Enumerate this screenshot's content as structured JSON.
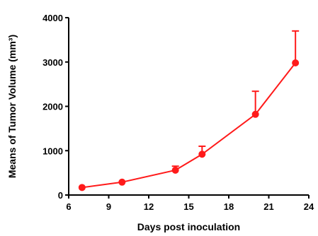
{
  "chart_data": {
    "type": "line",
    "title": "",
    "xlabel": "Days post inoculation",
    "ylabel": "Means of Tumor  Volume (mm³)",
    "xlim": [
      6,
      24
    ],
    "ylim": [
      0,
      4000
    ],
    "xticks": [
      6,
      9,
      12,
      15,
      18,
      21,
      24
    ],
    "yticks": [
      0,
      1000,
      2000,
      3000,
      4000
    ],
    "grid": false,
    "series": [
      {
        "color": "#ff1a1a",
        "x": [
          7,
          10,
          14,
          16,
          20,
          23
        ],
        "y": [
          170,
          290,
          560,
          920,
          1820,
          2980
        ],
        "error_upper": [
          0,
          0,
          90,
          180,
          520,
          720
        ]
      }
    ]
  }
}
